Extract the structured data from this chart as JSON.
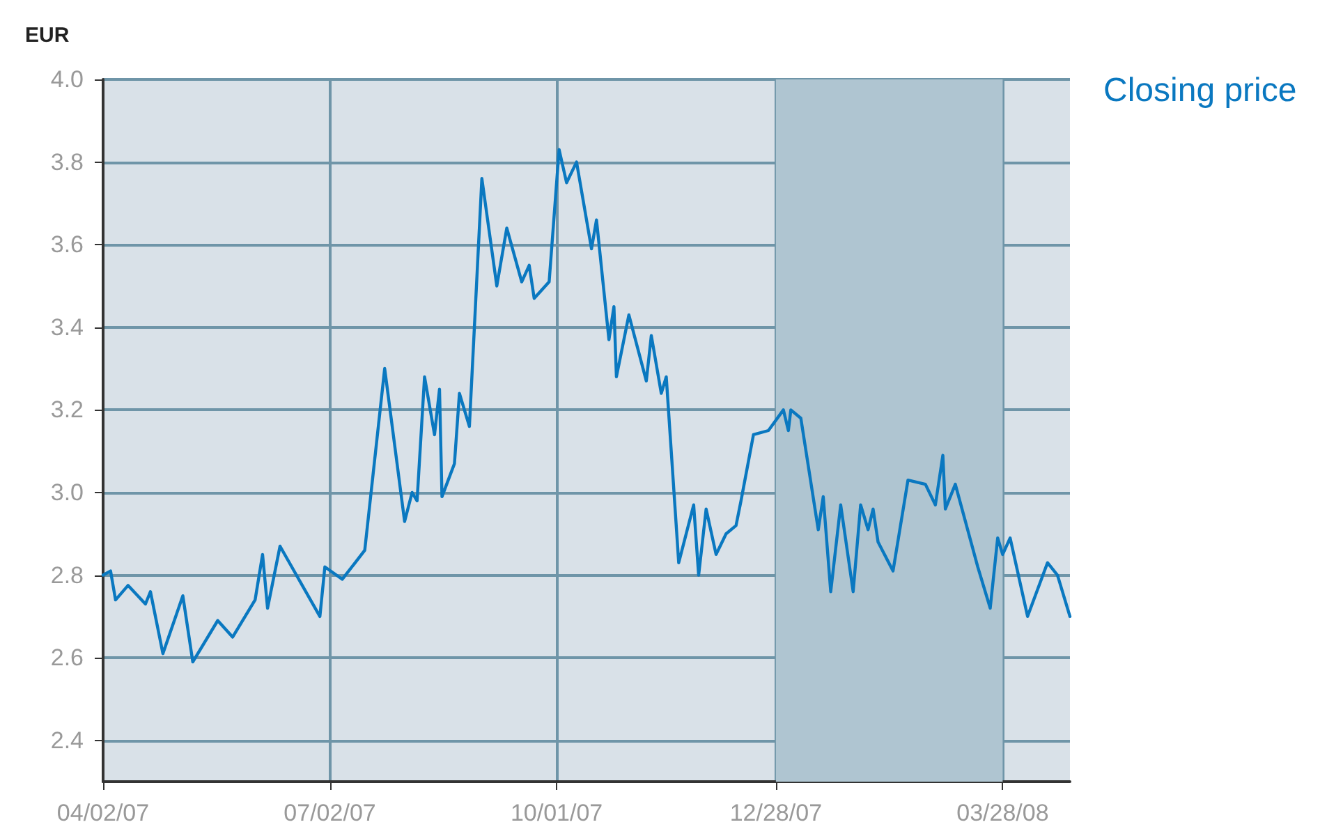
{
  "chart_data": {
    "type": "line",
    "ylabel": "EUR",
    "x": [
      "2007-04-02",
      "2007-04-05",
      "2007-04-07",
      "2007-04-12",
      "2007-04-19",
      "2007-04-21",
      "2007-04-26",
      "2007-05-04",
      "2007-05-08",
      "2007-05-18",
      "2007-05-24",
      "2007-06-02",
      "2007-06-05",
      "2007-06-07",
      "2007-06-12",
      "2007-06-28",
      "2007-06-30",
      "2007-07-07",
      "2007-07-16",
      "2007-07-24",
      "2007-08-01",
      "2007-08-04",
      "2007-08-06",
      "2007-08-09",
      "2007-08-13",
      "2007-08-15",
      "2007-08-16",
      "2007-08-21",
      "2007-08-23",
      "2007-08-27",
      "2007-09-01",
      "2007-09-07",
      "2007-09-11",
      "2007-09-17",
      "2007-09-20",
      "2007-09-22",
      "2007-09-28",
      "2007-10-02",
      "2007-10-05",
      "2007-10-09",
      "2007-10-15",
      "2007-10-17",
      "2007-10-22",
      "2007-10-24",
      "2007-10-25",
      "2007-10-30",
      "2007-11-06",
      "2007-11-08",
      "2007-11-12",
      "2007-11-14",
      "2007-11-19",
      "2007-11-25",
      "2007-11-27",
      "2007-11-30",
      "2007-12-04",
      "2007-12-08",
      "2007-12-12",
      "2007-12-14",
      "2007-12-19",
      "2007-12-25",
      "2007-12-31",
      "2008-01-02",
      "2008-01-03",
      "2008-01-07",
      "2008-01-14",
      "2008-01-16",
      "2008-01-19",
      "2008-01-23",
      "2008-01-28",
      "2008-01-31",
      "2008-02-03",
      "2008-02-05",
      "2008-02-07",
      "2008-02-13",
      "2008-02-19",
      "2008-02-26",
      "2008-03-01",
      "2008-03-04",
      "2008-03-05",
      "2008-03-09",
      "2008-03-18",
      "2008-03-23",
      "2008-03-26",
      "2008-03-28",
      "2008-03-31",
      "2008-04-07",
      "2008-04-15",
      "2008-04-19",
      "2008-04-24"
    ],
    "series": [
      {
        "name": "Closing price",
        "color": "#0a78c0",
        "values": [
          2.8,
          2.81,
          2.74,
          2.775,
          2.73,
          2.76,
          2.61,
          2.75,
          2.59,
          2.69,
          2.65,
          2.74,
          2.85,
          2.72,
          2.87,
          2.7,
          2.82,
          2.79,
          2.86,
          3.3,
          2.93,
          3.0,
          2.98,
          3.28,
          3.14,
          3.25,
          2.99,
          3.07,
          3.24,
          3.16,
          3.76,
          3.5,
          3.64,
          3.51,
          3.55,
          3.47,
          3.51,
          3.83,
          3.75,
          3.8,
          3.59,
          3.66,
          3.37,
          3.45,
          3.28,
          3.43,
          3.27,
          3.38,
          3.24,
          3.28,
          2.83,
          2.97,
          2.8,
          2.96,
          2.85,
          2.9,
          2.92,
          2.98,
          3.14,
          3.15,
          3.2,
          3.15,
          3.2,
          3.18,
          2.91,
          2.99,
          2.76,
          2.97,
          2.76,
          2.97,
          2.91,
          2.96,
          2.88,
          2.81,
          3.03,
          3.02,
          2.97,
          3.09,
          2.96,
          3.02,
          2.82,
          2.72,
          2.89,
          2.85,
          2.89,
          2.7,
          2.83,
          2.8,
          2.7
        ]
      }
    ],
    "xlim": [
      "2007-04-02",
      "2008-04-24"
    ],
    "xticks": [
      {
        "value": "2007-04-02",
        "label": "04/02/07"
      },
      {
        "value": "2007-07-02",
        "label": "07/02/07"
      },
      {
        "value": "2007-10-01",
        "label": "10/01/07"
      },
      {
        "value": "2007-12-28",
        "label": "12/28/07"
      },
      {
        "value": "2008-03-28",
        "label": "03/28/08"
      }
    ],
    "ylim": [
      2.3,
      4.0
    ],
    "yticks": [
      {
        "value": 2.4,
        "label": "2.4"
      },
      {
        "value": 2.6,
        "label": "2.6"
      },
      {
        "value": 2.8,
        "label": "2.8"
      },
      {
        "value": 3.0,
        "label": "3.0"
      },
      {
        "value": 3.2,
        "label": "3.2"
      },
      {
        "value": 3.4,
        "label": "3.4"
      },
      {
        "value": 3.6,
        "label": "3.6"
      },
      {
        "value": 3.8,
        "label": "3.8"
      },
      {
        "value": 4.0,
        "label": "4.0"
      }
    ],
    "bands": [
      {
        "axis": "x",
        "from": "2007-12-28",
        "to": "2008-03-28",
        "color": "#afc5d1"
      }
    ],
    "grid": true,
    "legend": false,
    "marker": "none",
    "line_style": "solid"
  }
}
